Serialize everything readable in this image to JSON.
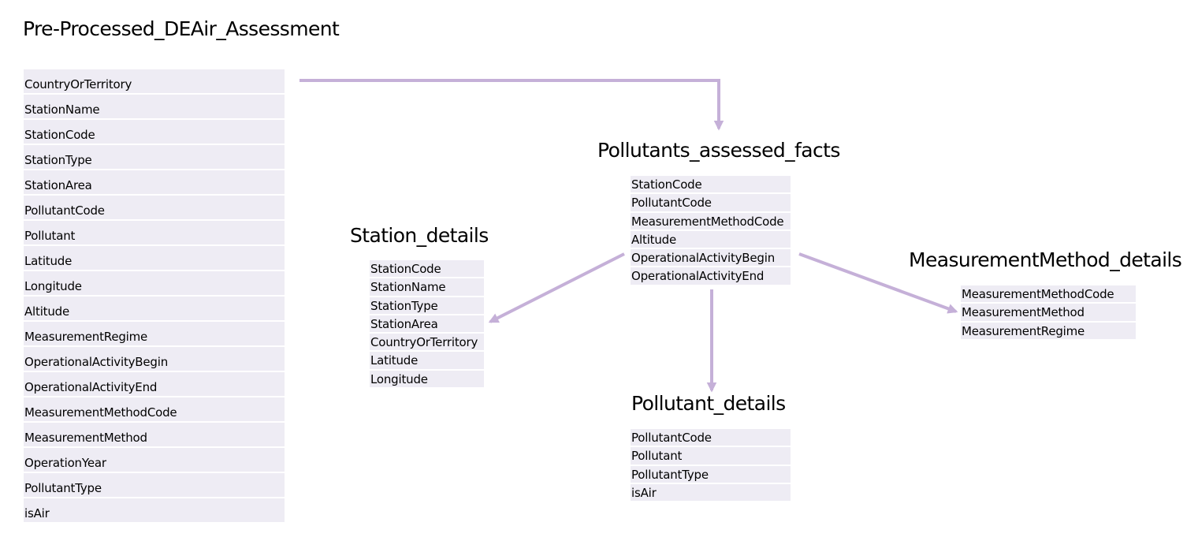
{
  "tables": {
    "main": {
      "title": "Pre-Processed_DEAir_Assessment",
      "fields": [
        "CountryOrTerritory",
        "StationName",
        "StationCode",
        "StationType",
        "StationArea",
        "PollutantCode",
        "Pollutant",
        "Latitude",
        "Longitude",
        "Altitude",
        "MeasurementRegime",
        "OperationalActivityBegin",
        "OperationalActivityEnd",
        "MeasurementMethodCode",
        "MeasurementMethod",
        "OperationYear",
        "PollutantType",
        "isAir"
      ]
    },
    "facts": {
      "title": "Pollutants_assessed_facts",
      "fields": [
        "StationCode",
        "PollutantCode",
        "MeasurementMethodCode",
        "Altitude",
        "OperationalActivityBegin",
        "OperationalActivityEnd"
      ]
    },
    "station": {
      "title": "Station_details",
      "fields": [
        "StationCode",
        "StationName",
        "StationType",
        "StationArea",
        "CountryOrTerritory",
        "Latitude",
        "Longitude"
      ]
    },
    "method": {
      "title": "MeasurementMethod_details",
      "fields": [
        "MeasurementMethodCode",
        "MeasurementMethod",
        "MeasurementRegime"
      ]
    },
    "pollutant": {
      "title": "Pollutant_details",
      "fields": [
        "PollutantCode",
        "Pollutant",
        "PollutantType",
        "isAir"
      ]
    }
  },
  "colors": {
    "row_bg": "#eeecf4",
    "arrow": "#c5b0d8"
  }
}
